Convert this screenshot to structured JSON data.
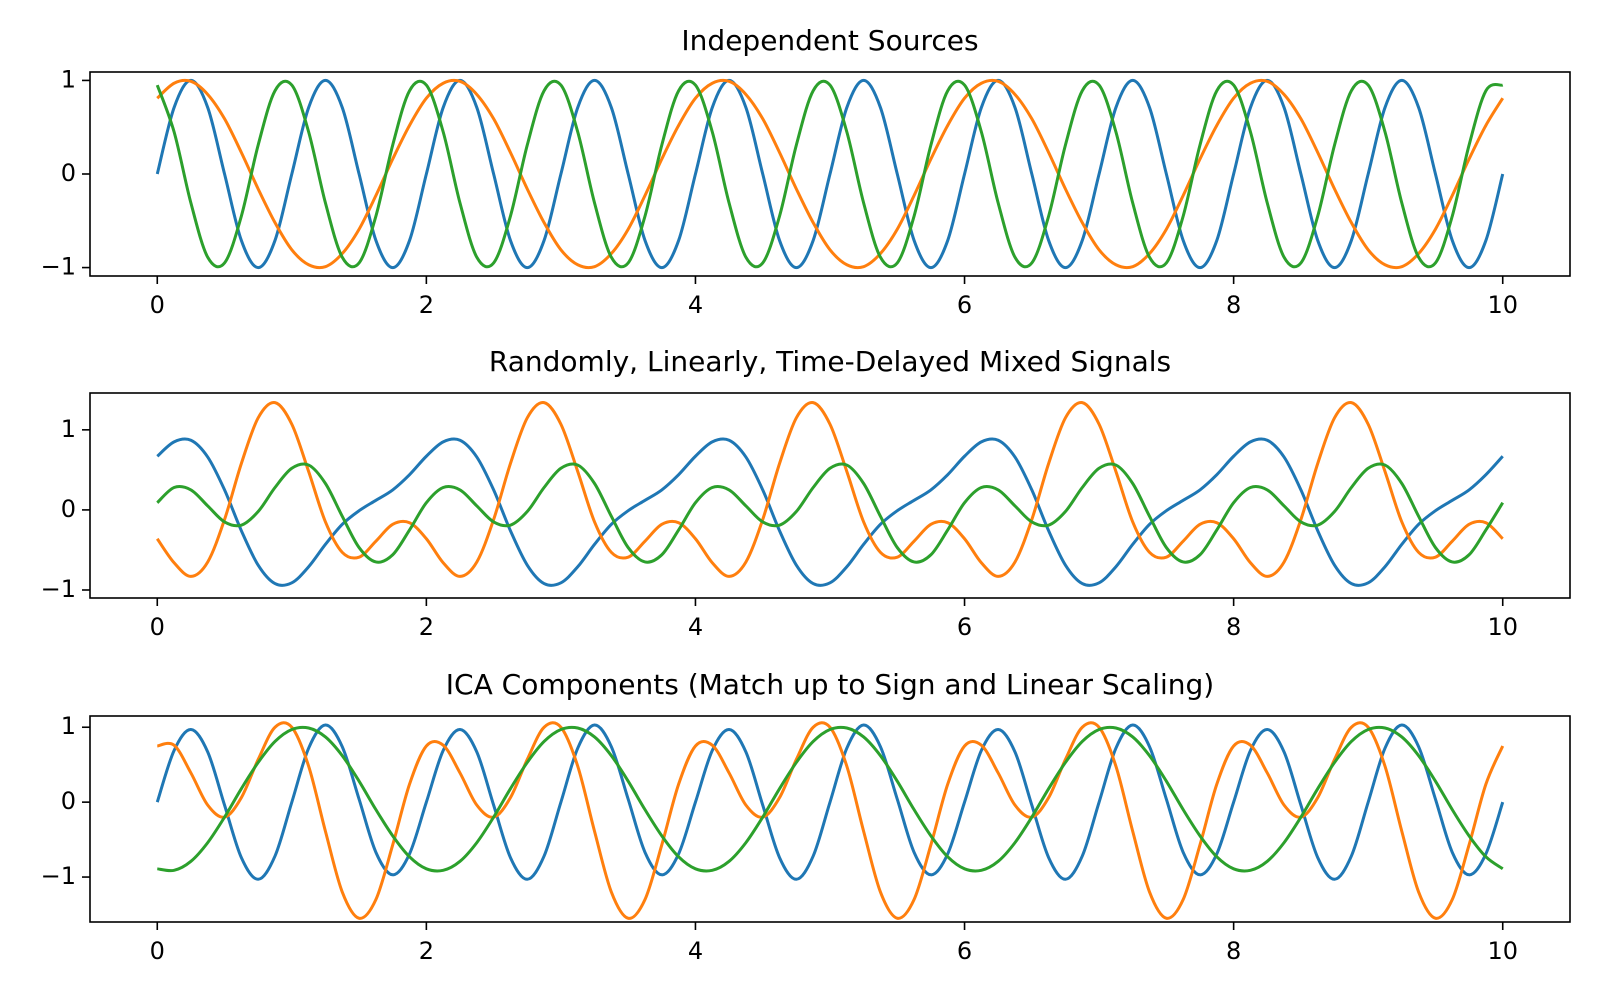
{
  "chart_data": [
    {
      "type": "line",
      "title": "Independent Sources",
      "x": [
        0,
        0.125,
        0.25,
        0.375,
        0.5,
        0.625,
        0.75,
        0.875,
        1,
        1.125,
        1.25,
        1.375,
        1.5,
        1.625,
        1.75,
        1.875,
        2,
        2.125,
        2.25,
        2.375,
        2.5,
        2.625,
        2.75,
        2.875,
        3,
        3.125,
        3.25,
        3.375,
        3.5,
        3.625,
        3.75,
        3.875,
        4,
        4.125,
        4.25,
        4.375,
        4.5,
        4.625,
        4.75,
        4.875,
        5,
        5.125,
        5.25,
        5.375,
        5.5,
        5.625,
        5.75,
        5.875,
        6,
        6.125,
        6.25,
        6.375,
        6.5,
        6.625,
        6.75,
        6.875,
        7,
        7.125,
        7.25,
        7.375,
        7.5,
        7.625,
        7.75,
        7.875,
        8,
        8.125,
        8.25,
        8.375,
        8.5,
        8.625,
        8.75,
        8.875,
        9,
        9.125,
        9.25,
        9.375,
        9.5,
        9.625,
        9.75,
        9.875,
        10
      ],
      "series": [
        {
          "color": "#1f77b4",
          "values": [
            0,
            0.71,
            1,
            0.71,
            0,
            -0.71,
            -1,
            -0.71,
            0,
            0.71,
            1,
            0.71,
            0,
            -0.71,
            -1,
            -0.71,
            0,
            0.71,
            1,
            0.71,
            0,
            -0.71,
            -1,
            -0.71,
            0,
            0.71,
            1,
            0.71,
            0,
            -0.71,
            -1,
            -0.71,
            0,
            0.71,
            1,
            0.71,
            0,
            -0.71,
            -1,
            -0.71,
            0,
            0.71,
            1,
            0.71,
            0,
            -0.71,
            -1,
            -0.71,
            0,
            0.71,
            1,
            0.71,
            0,
            -0.71,
            -1,
            -0.71,
            0,
            0.71,
            1,
            0.71,
            0,
            -0.71,
            -1,
            -0.71,
            0,
            0.71,
            1,
            0.71,
            0,
            -0.71,
            -1,
            -0.71,
            0,
            0.71,
            1,
            0.71,
            0,
            -0.71,
            -1,
            -0.71,
            0
          ]
        },
        {
          "color": "#ff7f0e",
          "values": [
            0.81,
            0.97,
            0.99,
            0.85,
            0.59,
            0.23,
            -0.16,
            -0.52,
            -0.81,
            -0.97,
            -0.99,
            -0.85,
            -0.59,
            -0.23,
            0.16,
            0.52,
            0.81,
            0.97,
            0.99,
            0.85,
            0.59,
            0.23,
            -0.16,
            -0.52,
            -0.81,
            -0.97,
            -0.99,
            -0.85,
            -0.59,
            -0.23,
            0.16,
            0.52,
            0.81,
            0.97,
            0.99,
            0.85,
            0.59,
            0.23,
            -0.16,
            -0.52,
            -0.81,
            -0.97,
            -0.99,
            -0.85,
            -0.59,
            -0.23,
            0.16,
            0.52,
            0.81,
            0.97,
            0.99,
            0.85,
            0.59,
            0.23,
            -0.16,
            -0.52,
            -0.81,
            -0.97,
            -0.99,
            -0.85,
            -0.59,
            -0.23,
            0.16,
            0.52,
            0.81,
            0.97,
            0.99,
            0.85,
            0.59,
            0.23,
            -0.16,
            -0.52,
            -0.81,
            -0.97,
            -0.99,
            -0.85,
            -0.59,
            -0.23,
            0.16,
            0.52,
            0.81
          ]
        },
        {
          "color": "#2ca02c",
          "values": [
            0.95,
            0.45,
            -0.31,
            -0.89,
            -0.95,
            -0.45,
            0.31,
            0.89,
            0.95,
            0.45,
            -0.31,
            -0.89,
            -0.95,
            -0.45,
            0.31,
            0.89,
            0.95,
            0.45,
            -0.31,
            -0.89,
            -0.95,
            -0.45,
            0.31,
            0.89,
            0.95,
            0.45,
            -0.31,
            -0.89,
            -0.95,
            -0.45,
            0.31,
            0.89,
            0.95,
            0.45,
            -0.31,
            -0.89,
            -0.95,
            -0.45,
            0.31,
            0.89,
            0.95,
            0.45,
            -0.31,
            -0.89,
            -0.95,
            -0.45,
            0.31,
            0.89,
            0.95,
            0.45,
            -0.31,
            -0.89,
            -0.95,
            -0.45,
            0.31,
            0.89,
            0.95,
            0.45,
            -0.31,
            -0.89,
            -0.95,
            -0.45,
            0.31,
            0.89,
            0.95,
            0.45,
            -0.31,
            -0.89,
            -0.95,
            -0.45,
            0.31,
            0.89,
            0.95,
            0.45,
            -0.31,
            -0.89,
            -0.95,
            -0.45,
            0.31,
            0.89,
            0.95
          ]
        }
      ],
      "xlim": [
        -0.5,
        10.5
      ],
      "xticks": [
        0,
        2,
        4,
        6,
        8,
        10
      ],
      "ylim": [
        -1.09,
        1.09
      ],
      "yticks": [
        {
          "value": -1,
          "label": "−1"
        },
        0,
        1
      ]
    },
    {
      "type": "line",
      "title": "Randomly, Linearly, Time-Delayed Mixed Signals",
      "x": [
        0,
        0.125,
        0.25,
        0.375,
        0.5,
        0.625,
        0.75,
        0.875,
        1,
        1.125,
        1.25,
        1.375,
        1.5,
        1.625,
        1.75,
        1.875,
        2,
        2.125,
        2.25,
        2.375,
        2.5,
        2.625,
        2.75,
        2.875,
        3,
        3.125,
        3.25,
        3.375,
        3.5,
        3.625,
        3.75,
        3.875,
        4,
        4.125,
        4.25,
        4.375,
        4.5,
        4.625,
        4.75,
        4.875,
        5,
        5.125,
        5.25,
        5.375,
        5.5,
        5.625,
        5.75,
        5.875,
        6,
        6.125,
        6.25,
        6.375,
        6.5,
        6.625,
        6.75,
        6.875,
        7,
        7.125,
        7.25,
        7.375,
        7.5,
        7.625,
        7.75,
        7.875,
        8,
        8.125,
        8.25,
        8.375,
        8.5,
        8.625,
        8.75,
        8.875,
        9,
        9.125,
        9.25,
        9.375,
        9.5,
        9.625,
        9.75,
        9.875,
        10
      ],
      "series": [
        {
          "color": "#1f77b4",
          "values": [
            0.67,
            0.85,
            0.87,
            0.66,
            0.25,
            -0.26,
            -0.69,
            -0.92,
            -0.91,
            -0.71,
            -0.43,
            -0.18,
            -0.01,
            0.12,
            0.25,
            0.44,
            0.67,
            0.85,
            0.87,
            0.66,
            0.25,
            -0.26,
            -0.69,
            -0.92,
            -0.91,
            -0.71,
            -0.43,
            -0.18,
            -0.01,
            0.12,
            0.25,
            0.44,
            0.67,
            0.85,
            0.87,
            0.66,
            0.25,
            -0.26,
            -0.69,
            -0.92,
            -0.91,
            -0.71,
            -0.43,
            -0.18,
            -0.01,
            0.12,
            0.25,
            0.44,
            0.67,
            0.85,
            0.87,
            0.66,
            0.25,
            -0.26,
            -0.69,
            -0.92,
            -0.91,
            -0.71,
            -0.43,
            -0.18,
            -0.01,
            0.12,
            0.25,
            0.44,
            0.67,
            0.85,
            0.87,
            0.66,
            0.25,
            -0.26,
            -0.69,
            -0.92,
            -0.91,
            -0.71,
            -0.43,
            -0.18,
            -0.01,
            0.12,
            0.25,
            0.44,
            0.67
          ]
        },
        {
          "color": "#ff7f0e",
          "values": [
            -0.36,
            -0.66,
            -0.83,
            -0.65,
            -0.12,
            0.58,
            1.15,
            1.34,
            1.07,
            0.48,
            -0.15,
            -0.53,
            -0.59,
            -0.39,
            -0.18,
            -0.16,
            -0.36,
            -0.66,
            -0.83,
            -0.65,
            -0.12,
            0.58,
            1.15,
            1.34,
            1.07,
            0.48,
            -0.15,
            -0.53,
            -0.59,
            -0.39,
            -0.18,
            -0.16,
            -0.36,
            -0.66,
            -0.83,
            -0.65,
            -0.12,
            0.58,
            1.15,
            1.34,
            1.07,
            0.48,
            -0.15,
            -0.53,
            -0.59,
            -0.39,
            -0.18,
            -0.16,
            -0.36,
            -0.66,
            -0.83,
            -0.65,
            -0.12,
            0.58,
            1.15,
            1.34,
            1.07,
            0.48,
            -0.15,
            -0.53,
            -0.59,
            -0.39,
            -0.18,
            -0.16,
            -0.36,
            -0.66,
            -0.83,
            -0.65,
            -0.12,
            0.58,
            1.15,
            1.34,
            1.07,
            0.48,
            -0.15,
            -0.53,
            -0.59,
            -0.39,
            -0.18,
            -0.16,
            -0.36
          ]
        },
        {
          "color": "#2ca02c",
          "values": [
            0.09,
            0.28,
            0.25,
            0.05,
            -0.15,
            -0.19,
            -0.02,
            0.28,
            0.52,
            0.56,
            0.33,
            -0.08,
            -0.47,
            -0.65,
            -0.56,
            -0.25,
            0.09,
            0.28,
            0.25,
            0.05,
            -0.15,
            -0.19,
            -0.02,
            0.28,
            0.52,
            0.56,
            0.33,
            -0.08,
            -0.47,
            -0.65,
            -0.56,
            -0.25,
            0.09,
            0.28,
            0.25,
            0.05,
            -0.15,
            -0.19,
            -0.02,
            0.28,
            0.52,
            0.56,
            0.33,
            -0.08,
            -0.47,
            -0.65,
            -0.56,
            -0.25,
            0.09,
            0.28,
            0.25,
            0.05,
            -0.15,
            -0.19,
            -0.02,
            0.28,
            0.52,
            0.56,
            0.33,
            -0.08,
            -0.47,
            -0.65,
            -0.56,
            -0.25,
            0.09,
            0.28,
            0.25,
            0.05,
            -0.15,
            -0.19,
            -0.02,
            0.28,
            0.52,
            0.56,
            0.33,
            -0.08,
            -0.47,
            -0.65,
            -0.56,
            -0.25,
            0.09
          ]
        }
      ],
      "xlim": [
        -0.5,
        10.5
      ],
      "xticks": [
        0,
        2,
        4,
        6,
        8,
        10
      ],
      "ylim": [
        -1.1,
        1.46
      ],
      "yticks": [
        {
          "value": -1,
          "label": "−1"
        },
        0,
        1
      ]
    },
    {
      "type": "line",
      "title": "ICA Components (Match up to Sign and Linear Scaling)",
      "x": [
        0,
        0.125,
        0.25,
        0.375,
        0.5,
        0.625,
        0.75,
        0.875,
        1,
        1.125,
        1.25,
        1.375,
        1.5,
        1.625,
        1.75,
        1.875,
        2,
        2.125,
        2.25,
        2.375,
        2.5,
        2.625,
        2.75,
        2.875,
        3,
        3.125,
        3.25,
        3.375,
        3.5,
        3.625,
        3.75,
        3.875,
        4,
        4.125,
        4.25,
        4.375,
        4.5,
        4.625,
        4.75,
        4.875,
        5,
        5.125,
        5.25,
        5.375,
        5.5,
        5.625,
        5.75,
        5.875,
        6,
        6.125,
        6.25,
        6.375,
        6.5,
        6.625,
        6.75,
        6.875,
        7,
        7.125,
        7.25,
        7.375,
        7.5,
        7.625,
        7.75,
        7.875,
        8,
        8.125,
        8.25,
        8.375,
        8.5,
        8.625,
        8.75,
        8.875,
        9,
        9.125,
        9.25,
        9.375,
        9.5,
        9.625,
        9.75,
        9.875,
        10
      ],
      "series": [
        {
          "color": "#1f77b4",
          "values": [
            0,
            0.69,
            0.97,
            0.67,
            -0.04,
            -0.74,
            -1.03,
            -0.72,
            0,
            0.72,
            1.03,
            0.74,
            0.04,
            -0.67,
            -0.97,
            -0.69,
            0,
            0.69,
            0.97,
            0.67,
            -0.04,
            -0.74,
            -1.03,
            -0.72,
            0,
            0.72,
            1.03,
            0.74,
            0.04,
            -0.67,
            -0.97,
            -0.69,
            0,
            0.69,
            0.97,
            0.67,
            -0.04,
            -0.74,
            -1.03,
            -0.72,
            0,
            0.72,
            1.03,
            0.74,
            0.04,
            -0.67,
            -0.97,
            -0.69,
            0,
            0.69,
            0.97,
            0.67,
            -0.04,
            -0.74,
            -1.03,
            -0.72,
            0,
            0.72,
            1.03,
            0.74,
            0.04,
            -0.67,
            -0.97,
            -0.69,
            0,
            0.69,
            0.97,
            0.67,
            -0.04,
            -0.74,
            -1.03,
            -0.72,
            0,
            0.72,
            1.03,
            0.74,
            0.04,
            -0.67,
            -0.97,
            -0.69,
            0
          ]
        },
        {
          "color": "#ff7f0e",
          "values": [
            0.75,
            0.76,
            0.39,
            -0.04,
            -0.2,
            0.06,
            0.57,
            1,
            1,
            0.48,
            -0.39,
            -1.2,
            -1.55,
            -1.3,
            -0.57,
            0.24,
            0.75,
            0.76,
            0.39,
            -0.04,
            -0.2,
            0.06,
            0.57,
            1,
            1,
            0.48,
            -0.39,
            -1.2,
            -1.55,
            -1.3,
            -0.57,
            0.24,
            0.75,
            0.76,
            0.39,
            -0.04,
            -0.2,
            0.06,
            0.57,
            1,
            1,
            0.48,
            -0.39,
            -1.2,
            -1.55,
            -1.3,
            -0.57,
            0.24,
            0.75,
            0.76,
            0.39,
            -0.04,
            -0.2,
            0.06,
            0.57,
            1,
            1,
            0.48,
            -0.39,
            -1.2,
            -1.55,
            -1.3,
            -0.57,
            0.24,
            0.75,
            0.76,
            0.39,
            -0.04,
            -0.2,
            0.06,
            0.57,
            1,
            1,
            0.48,
            -0.39,
            -1.2,
            -1.55,
            -1.3,
            -0.57,
            0.24,
            0.75
          ]
        },
        {
          "color": "#2ca02c",
          "values": [
            -0.89,
            -0.91,
            -0.79,
            -0.54,
            -0.2,
            0.18,
            0.53,
            0.81,
            0.97,
            0.99,
            0.87,
            0.62,
            0.28,
            -0.1,
            -0.45,
            -0.73,
            -0.89,
            -0.91,
            -0.79,
            -0.54,
            -0.2,
            0.18,
            0.53,
            0.81,
            0.97,
            0.99,
            0.87,
            0.62,
            0.28,
            -0.1,
            -0.45,
            -0.73,
            -0.89,
            -0.91,
            -0.79,
            -0.54,
            -0.2,
            0.18,
            0.53,
            0.81,
            0.97,
            0.99,
            0.87,
            0.62,
            0.28,
            -0.1,
            -0.45,
            -0.73,
            -0.89,
            -0.91,
            -0.79,
            -0.54,
            -0.2,
            0.18,
            0.53,
            0.81,
            0.97,
            0.99,
            0.87,
            0.62,
            0.28,
            -0.1,
            -0.45,
            -0.73,
            -0.89,
            -0.91,
            -0.79,
            -0.54,
            -0.2,
            0.18,
            0.53,
            0.81,
            0.97,
            0.99,
            0.87,
            0.62,
            0.28,
            -0.1,
            -0.45,
            -0.73,
            -0.89
          ]
        }
      ],
      "xlim": [
        -0.5,
        10.5
      ],
      "xticks": [
        0,
        2,
        4,
        6,
        8,
        10
      ],
      "ylim": [
        -1.6,
        1.15
      ],
      "yticks": [
        {
          "value": -1,
          "label": "−1"
        },
        0,
        1
      ]
    }
  ]
}
